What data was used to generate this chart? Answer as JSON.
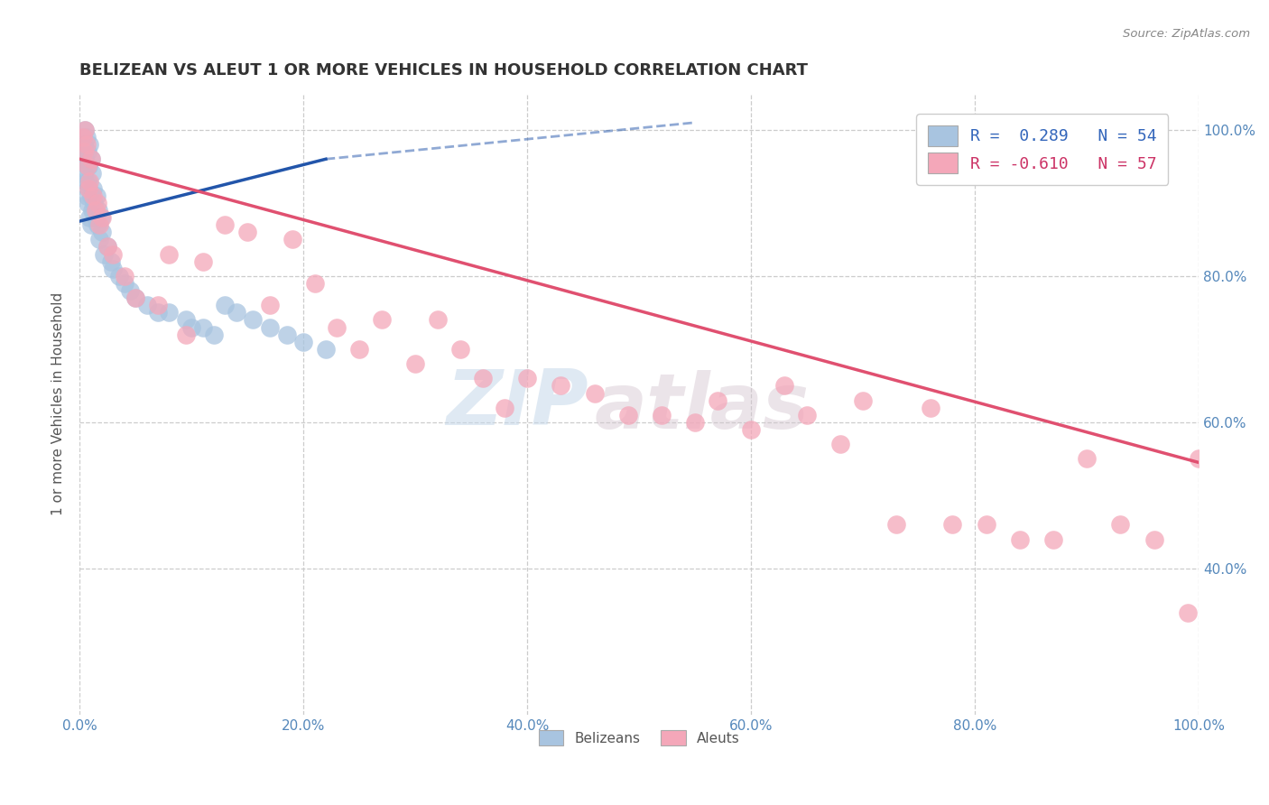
{
  "title": "BELIZEAN VS ALEUT 1 OR MORE VEHICLES IN HOUSEHOLD CORRELATION CHART",
  "source_text": "Source: ZipAtlas.com",
  "ylabel": "1 or more Vehicles in Household",
  "legend_label1": "Belizeans",
  "legend_label2": "Aleuts",
  "legend_r1": "R =  0.289",
  "legend_n1": "N = 54",
  "legend_r2": "R = -0.610",
  "legend_n2": "N = 57",
  "watermark_zip": "ZIP",
  "watermark_atlas": "atlas",
  "blue_color": "#a8c4e0",
  "pink_color": "#f4a7b9",
  "blue_line_color": "#2255aa",
  "pink_line_color": "#e05070",
  "xmin": 0.0,
  "xmax": 1.0,
  "ymin": 0.2,
  "ymax": 1.05,
  "yticks": [
    0.4,
    0.6,
    0.8,
    1.0
  ],
  "ytick_labels": [
    "40.0%",
    "60.0%",
    "80.0%",
    "100.0%"
  ],
  "xticks": [
    0.0,
    0.2,
    0.4,
    0.6,
    0.8,
    1.0
  ],
  "xtick_labels": [
    "0.0%",
    "20.0%",
    "40.0%",
    "60.0%",
    "80.0%",
    "100.0%"
  ],
  "blue_scatter_x": [
    0.002,
    0.003,
    0.003,
    0.004,
    0.004,
    0.005,
    0.005,
    0.005,
    0.006,
    0.006,
    0.006,
    0.007,
    0.007,
    0.007,
    0.008,
    0.008,
    0.009,
    0.009,
    0.01,
    0.01,
    0.01,
    0.011,
    0.011,
    0.012,
    0.013,
    0.014,
    0.015,
    0.016,
    0.017,
    0.018,
    0.019,
    0.02,
    0.022,
    0.025,
    0.028,
    0.03,
    0.035,
    0.04,
    0.045,
    0.05,
    0.06,
    0.07,
    0.08,
    0.095,
    0.1,
    0.11,
    0.12,
    0.13,
    0.14,
    0.155,
    0.17,
    0.185,
    0.2,
    0.22
  ],
  "blue_scatter_y": [
    0.97,
    0.99,
    0.96,
    0.98,
    0.94,
    1.0,
    0.96,
    0.93,
    0.99,
    0.95,
    0.91,
    0.97,
    0.93,
    0.9,
    0.95,
    0.92,
    0.98,
    0.88,
    0.96,
    0.91,
    0.87,
    0.94,
    0.89,
    0.92,
    0.9,
    0.88,
    0.91,
    0.87,
    0.89,
    0.85,
    0.88,
    0.86,
    0.83,
    0.84,
    0.82,
    0.81,
    0.8,
    0.79,
    0.78,
    0.77,
    0.76,
    0.75,
    0.75,
    0.74,
    0.73,
    0.73,
    0.72,
    0.76,
    0.75,
    0.74,
    0.73,
    0.72,
    0.71,
    0.7
  ],
  "pink_scatter_x": [
    0.003,
    0.004,
    0.005,
    0.006,
    0.007,
    0.008,
    0.009,
    0.01,
    0.012,
    0.014,
    0.016,
    0.018,
    0.02,
    0.025,
    0.03,
    0.04,
    0.05,
    0.07,
    0.08,
    0.095,
    0.11,
    0.13,
    0.15,
    0.17,
    0.19,
    0.21,
    0.23,
    0.25,
    0.27,
    0.3,
    0.32,
    0.34,
    0.36,
    0.38,
    0.4,
    0.43,
    0.46,
    0.49,
    0.52,
    0.55,
    0.57,
    0.6,
    0.63,
    0.65,
    0.68,
    0.7,
    0.73,
    0.76,
    0.78,
    0.81,
    0.84,
    0.87,
    0.9,
    0.93,
    0.96,
    0.99,
    1.0
  ],
  "pink_scatter_y": [
    0.99,
    0.97,
    1.0,
    0.98,
    0.95,
    0.92,
    0.93,
    0.96,
    0.91,
    0.89,
    0.9,
    0.87,
    0.88,
    0.84,
    0.83,
    0.8,
    0.77,
    0.76,
    0.83,
    0.72,
    0.82,
    0.87,
    0.86,
    0.76,
    0.85,
    0.79,
    0.73,
    0.7,
    0.74,
    0.68,
    0.74,
    0.7,
    0.66,
    0.62,
    0.66,
    0.65,
    0.64,
    0.61,
    0.61,
    0.6,
    0.63,
    0.59,
    0.65,
    0.61,
    0.57,
    0.63,
    0.46,
    0.62,
    0.46,
    0.46,
    0.44,
    0.44,
    0.55,
    0.46,
    0.44,
    0.34,
    0.55
  ],
  "blue_line_x": [
    0.0,
    0.22
  ],
  "blue_line_y_start": 0.875,
  "blue_line_y_end": 0.96,
  "pink_line_x": [
    0.0,
    1.0
  ],
  "pink_line_y_start": 0.96,
  "pink_line_y_end": 0.545
}
